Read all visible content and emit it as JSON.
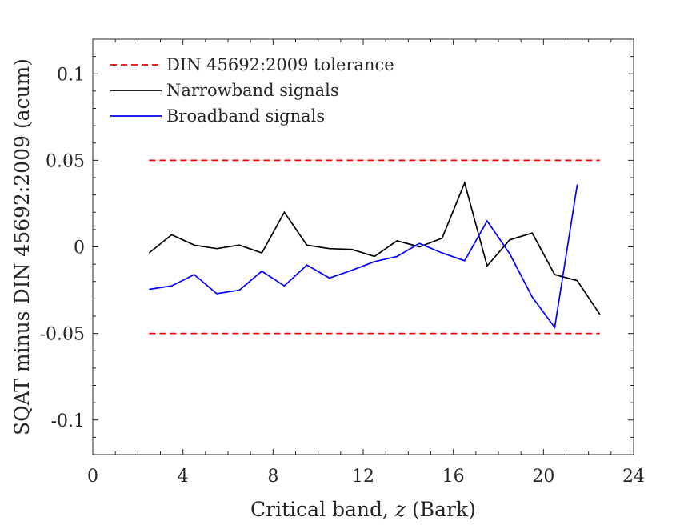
{
  "chart_data": {
    "type": "line",
    "xlabel": "Critical band, z (Bark)",
    "xlabel_parts": {
      "prefix": "Critical band, ",
      "var": "z",
      "suffix": " (Bark)"
    },
    "ylabel": "SQAT minus DIN 45692:2009 (acum)",
    "xlim": [
      0,
      24
    ],
    "ylim": [
      -0.12,
      0.12
    ],
    "xticks": [
      0,
      4,
      8,
      12,
      16,
      20,
      24
    ],
    "xtick_labels": [
      "0",
      "4",
      "8",
      "12",
      "16",
      "20",
      "24"
    ],
    "yticks": [
      -0.1,
      -0.05,
      0,
      0.05,
      0.1
    ],
    "ytick_labels": [
      "-0.1",
      "-0.05",
      "0",
      "0.05",
      "0.1"
    ],
    "grid": false,
    "legend_position": "top-left",
    "series": [
      {
        "name": "DIN 45692:2009 tolerance",
        "color": "#ff0000",
        "style": "dashed",
        "x": [
          2.5,
          22.5
        ],
        "y": [
          0.05,
          0.05
        ]
      },
      {
        "name": "DIN 45692:2009 tolerance",
        "color": "#ff0000",
        "style": "dashed",
        "x": [
          2.5,
          22.5
        ],
        "y": [
          -0.05,
          -0.05
        ]
      },
      {
        "name": "Narrowband signals",
        "color": "#000000",
        "style": "solid",
        "x": [
          2.5,
          3.5,
          4.5,
          5.5,
          6.5,
          7.5,
          8.5,
          9.5,
          10.5,
          11.5,
          12.5,
          13.5,
          14.5,
          15.5,
          16.5,
          17.5,
          18.5,
          19.5,
          20.5,
          21.5,
          22.5
        ],
        "y": [
          -0.0035,
          0.007,
          0.001,
          -0.001,
          0.001,
          -0.0035,
          0.02,
          0.001,
          -0.001,
          -0.0015,
          -0.0055,
          0.0035,
          0.0,
          0.005,
          0.037,
          -0.011,
          0.004,
          0.008,
          -0.016,
          -0.0195,
          -0.039
        ]
      },
      {
        "name": "Broadband signals",
        "color": "#0000ff",
        "style": "solid",
        "x": [
          2.5,
          3.5,
          4.5,
          5.5,
          6.5,
          7.5,
          8.5,
          9.5,
          10.5,
          11.5,
          12.5,
          13.5,
          14.5,
          15.5,
          16.5,
          17.5,
          18.5,
          19.5,
          20.5,
          21.5
        ],
        "y": [
          -0.0245,
          -0.0225,
          -0.016,
          -0.027,
          -0.025,
          -0.014,
          -0.0225,
          -0.0105,
          -0.018,
          -0.0135,
          -0.0085,
          -0.0055,
          0.002,
          -0.0035,
          -0.008,
          0.015,
          -0.004,
          -0.029,
          -0.0465,
          0.036
        ]
      }
    ],
    "legend": [
      {
        "label": "DIN 45692:2009 tolerance",
        "color": "#ff0000",
        "style": "dashed"
      },
      {
        "label": "Narrowband signals",
        "color": "#000000",
        "style": "solid"
      },
      {
        "label": "Broadband signals",
        "color": "#0000ff",
        "style": "solid"
      }
    ]
  }
}
